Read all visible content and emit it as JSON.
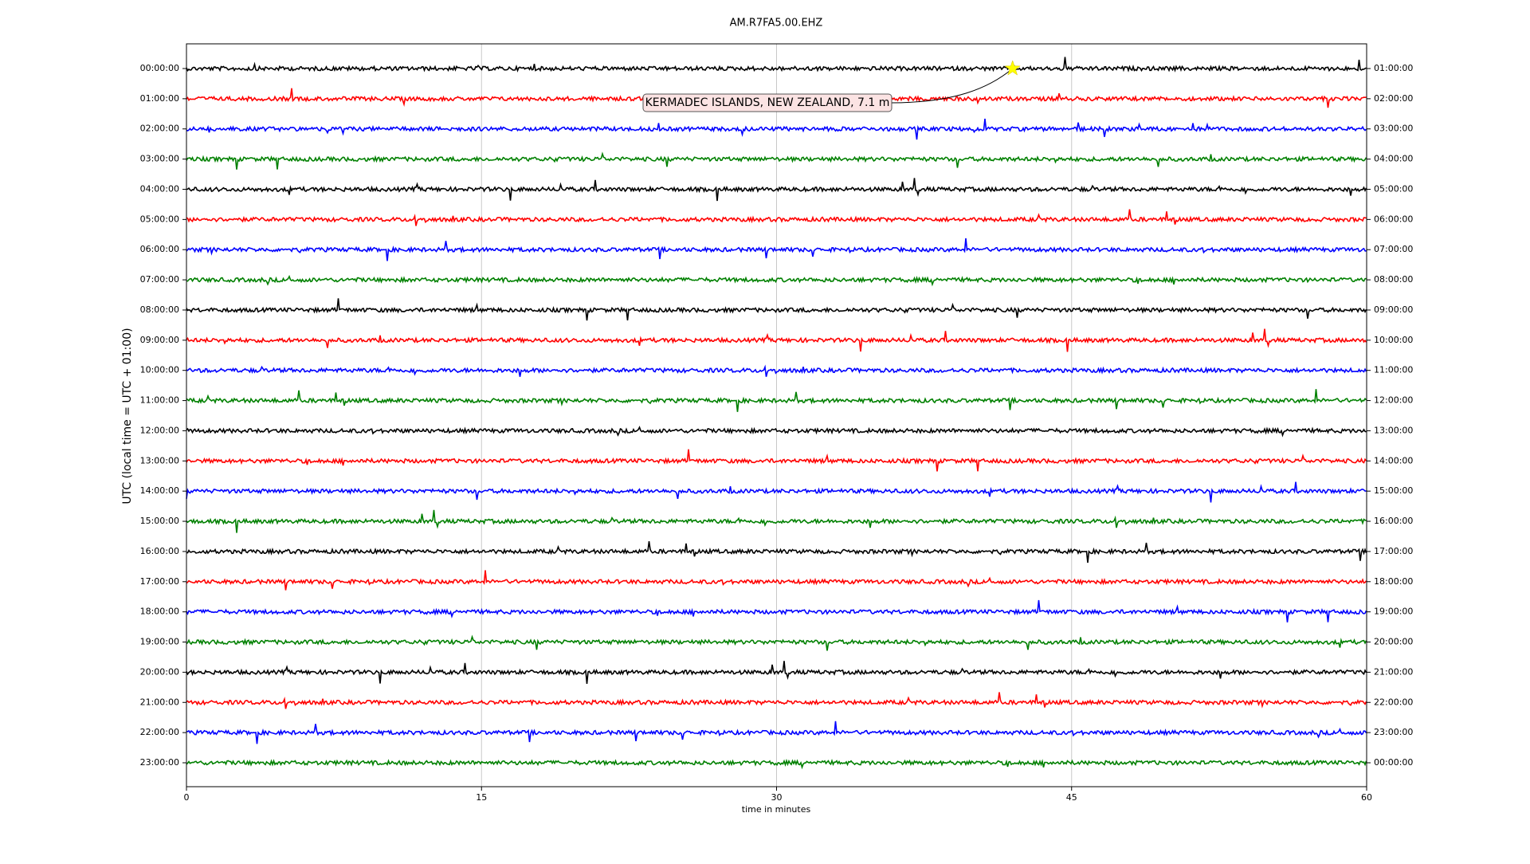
{
  "chart_data": {
    "type": "helicorder",
    "title": "AM.R7FA5.00.EHZ",
    "x_label": "time in minutes",
    "y_label": "UTC (local time = UTC + 01:00)",
    "xlim": [
      0,
      60
    ],
    "xticks": [
      0,
      15,
      30,
      45,
      60
    ],
    "grid": true,
    "colors": [
      "#000000",
      "#ff0000",
      "#0000ff",
      "#008000"
    ],
    "rows": [
      "00:00:00",
      "01:00:00",
      "02:00:00",
      "03:00:00",
      "04:00:00",
      "05:00:00",
      "06:00:00",
      "07:00:00",
      "08:00:00",
      "09:00:00",
      "10:00:00",
      "11:00:00",
      "12:00:00",
      "13:00:00",
      "14:00:00",
      "15:00:00",
      "16:00:00",
      "17:00:00",
      "18:00:00",
      "19:00:00",
      "20:00:00",
      "21:00:00",
      "22:00:00",
      "23:00:00"
    ],
    "rows_right": [
      "01:00:00",
      "02:00:00",
      "03:00:00",
      "04:00:00",
      "05:00:00",
      "06:00:00",
      "07:00:00",
      "08:00:00",
      "09:00:00",
      "10:00:00",
      "11:00:00",
      "12:00:00",
      "13:00:00",
      "14:00:00",
      "15:00:00",
      "16:00:00",
      "17:00:00",
      "18:00:00",
      "19:00:00",
      "20:00:00",
      "21:00:00",
      "22:00:00",
      "23:00:00",
      "00:00:00"
    ],
    "event": {
      "label": "KERMADEC ISLANDS, NEW ZEALAND, 7.1 m",
      "minute": 42,
      "row": 0
    }
  }
}
